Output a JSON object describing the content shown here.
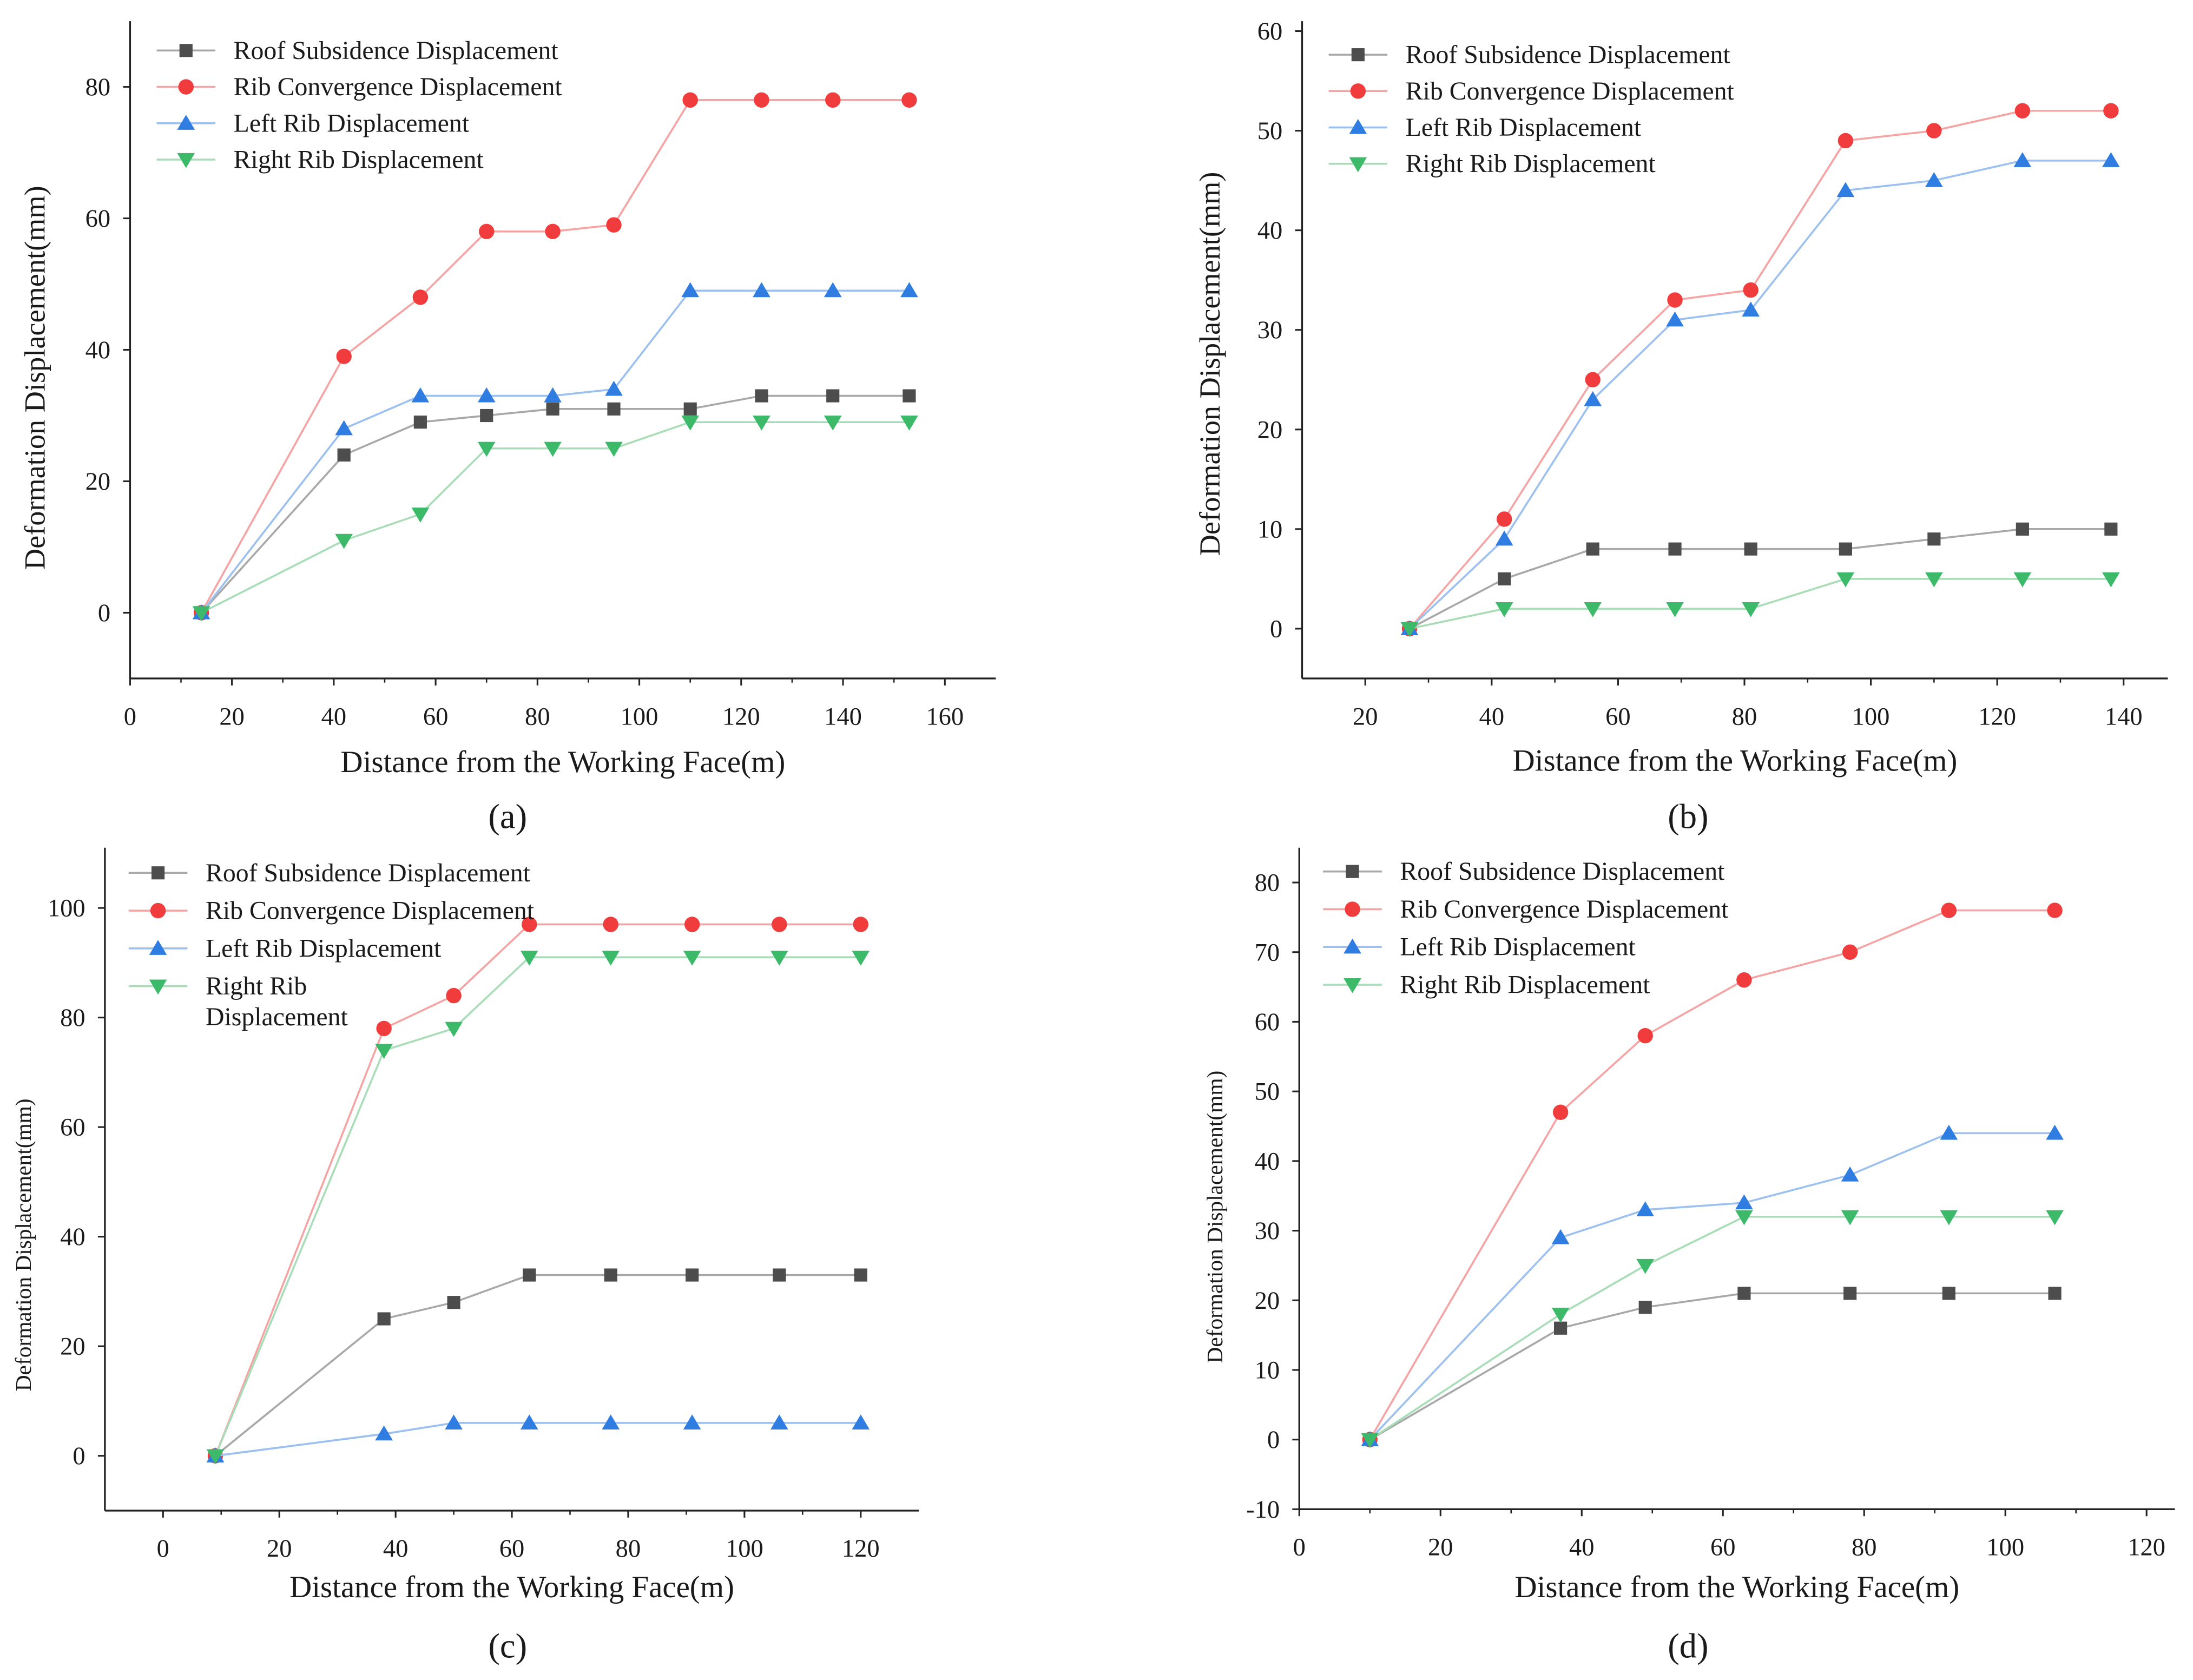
{
  "series_colors": {
    "roof": "#4d4d4d",
    "rib": "#f03c3c",
    "left": "#2f7de1",
    "right": "#3cba6a"
  },
  "line_colors": {
    "roof": "#a8a8a8",
    "rib": "#f5a3a3",
    "left": "#9cc0ef",
    "right": "#a8ddb8"
  },
  "chart_data": [
    {
      "type": "line",
      "panel_label": "(a)",
      "xlabel": "Distance from the Working Face(m)",
      "ylabel": "Deformation Displacement(mm)",
      "xlim": [
        0,
        170
      ],
      "ylim": [
        -10,
        90
      ],
      "xticks": [
        0,
        20,
        40,
        60,
        80,
        100,
        120,
        140,
        160
      ],
      "yticks": [
        0,
        20,
        40,
        60,
        80
      ],
      "legend_placement": "top-left",
      "x": [
        14,
        42,
        57,
        70,
        83,
        95,
        110,
        124,
        138,
        153
      ],
      "series": [
        {
          "key": "roof",
          "name": "Roof Subsidence Displacement",
          "marker": "square",
          "values": [
            0,
            24,
            29,
            30,
            31,
            31,
            31,
            33,
            33,
            33
          ]
        },
        {
          "key": "rib",
          "name": "Rib Convergence Displacement",
          "marker": "circle",
          "values": [
            0,
            39,
            48,
            58,
            58,
            59,
            78,
            78,
            78,
            78
          ]
        },
        {
          "key": "left",
          "name": "Left Rib Displacement",
          "marker": "triangle-up",
          "values": [
            0,
            28,
            33,
            33,
            33,
            34,
            49,
            49,
            49,
            49
          ]
        },
        {
          "key": "right",
          "name": "Right Rib Displacement",
          "marker": "triangle-down",
          "values": [
            0,
            11,
            15,
            25,
            25,
            25,
            29,
            29,
            29,
            29
          ]
        }
      ]
    },
    {
      "type": "line",
      "panel_label": "(b)",
      "xlabel": "Distance from the Working Face(m)",
      "ylabel": "Deformation Displacement(mm)",
      "xlim": [
        10,
        147
      ],
      "ylim": [
        -5,
        61
      ],
      "xticks": [
        20,
        40,
        60,
        80,
        100,
        120,
        140
      ],
      "yticks": [
        0,
        10,
        20,
        30,
        40,
        50,
        60
      ],
      "legend_placement": "top-left",
      "x": [
        27,
        42,
        56,
        69,
        81,
        96,
        110,
        124,
        138
      ],
      "series": [
        {
          "key": "roof",
          "name": "Roof Subsidence Displacement",
          "marker": "square",
          "values": [
            0,
            5,
            8,
            8,
            8,
            8,
            9,
            10,
            10
          ]
        },
        {
          "key": "rib",
          "name": "Rib Convergence Displacement",
          "marker": "circle",
          "values": [
            0,
            11,
            25,
            33,
            34,
            49,
            50,
            52,
            52
          ]
        },
        {
          "key": "left",
          "name": "Left Rib Displacement",
          "marker": "triangle-up",
          "values": [
            0,
            9,
            23,
            31,
            32,
            44,
            45,
            47,
            47
          ]
        },
        {
          "key": "right",
          "name": "Right Rib Displacement",
          "marker": "triangle-down",
          "values": [
            0,
            2,
            2,
            2,
            2,
            5,
            5,
            5,
            5
          ]
        }
      ]
    },
    {
      "type": "line",
      "panel_label": "(c)",
      "xlabel": "Distance from the Working Face(m)",
      "ylabel": "Deformation Displacement(mm)",
      "xlim": [
        -10,
        130
      ],
      "ylim": [
        -10,
        111
      ],
      "xticks": [
        0,
        20,
        40,
        60,
        80,
        100,
        120
      ],
      "yticks": [
        0,
        20,
        40,
        60,
        80,
        100
      ],
      "legend_placement": "top-left",
      "x": [
        9,
        38,
        50,
        63,
        77,
        91,
        106,
        120
      ],
      "series": [
        {
          "key": "roof",
          "name": "Roof Subsidence Displacement",
          "marker": "square",
          "values": [
            0,
            25,
            28,
            33,
            33,
            33,
            33,
            33
          ]
        },
        {
          "key": "rib",
          "name": "Rib Convergence Displacement",
          "marker": "circle",
          "values": [
            0,
            78,
            84,
            97,
            97,
            97,
            97,
            97
          ]
        },
        {
          "key": "left",
          "name": "Left Rib Displacement",
          "marker": "triangle-up",
          "values": [
            0,
            4,
            6,
            6,
            6,
            6,
            6,
            6
          ]
        },
        {
          "key": "right",
          "name": "Right Rib Displacement",
          "marker": "triangle-down",
          "values": [
            0,
            74,
            78,
            91,
            91,
            91,
            91,
            91
          ]
        }
      ]
    },
    {
      "type": "line",
      "panel_label": "(d)",
      "xlabel": "Distance from the Working Face(m)",
      "ylabel": "Deformation Displacement(mm)",
      "xlim": [
        0,
        124
      ],
      "ylim": [
        -10,
        85
      ],
      "xticks": [
        0,
        20,
        40,
        60,
        80,
        100,
        120
      ],
      "yticks": [
        -10,
        0,
        10,
        20,
        30,
        40,
        50,
        60,
        70,
        80
      ],
      "legend_placement": "top-left",
      "x": [
        10,
        37,
        49,
        63,
        78,
        92,
        107
      ],
      "series": [
        {
          "key": "roof",
          "name": "Roof Subsidence Displacement",
          "marker": "square",
          "values": [
            0,
            16,
            19,
            21,
            21,
            21,
            21
          ]
        },
        {
          "key": "rib",
          "name": "Rib Convergence Displacement",
          "marker": "circle",
          "values": [
            0,
            47,
            58,
            66,
            70,
            76,
            76
          ]
        },
        {
          "key": "left",
          "name": "Left Rib Displacement",
          "marker": "triangle-up",
          "values": [
            0,
            29,
            33,
            34,
            38,
            44,
            44
          ]
        },
        {
          "key": "right",
          "name": "Right Rib Displacement",
          "marker": "triangle-down",
          "values": [
            0,
            18,
            25,
            32,
            32,
            32,
            32
          ]
        }
      ]
    }
  ]
}
